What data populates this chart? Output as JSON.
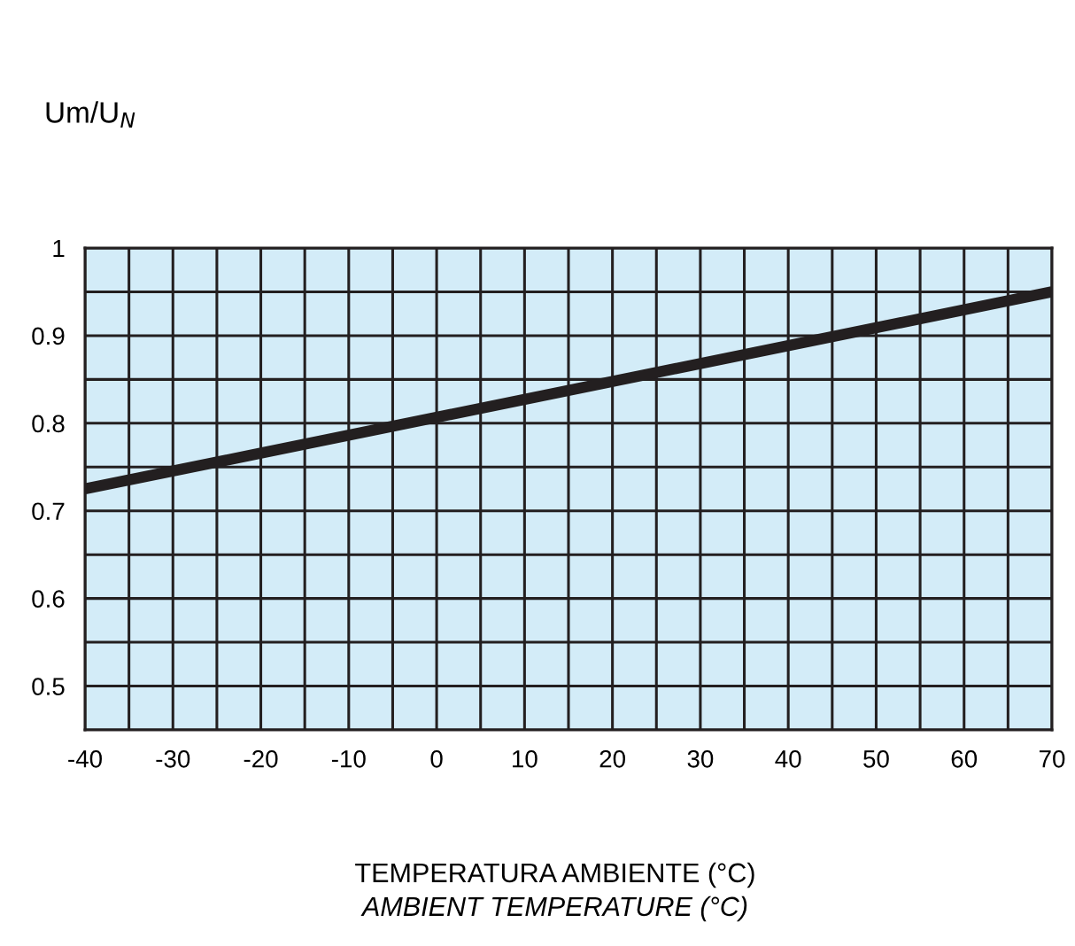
{
  "chart_data": {
    "type": "line",
    "ylabel": "Um/U$_{N}$",
    "xlabel": "TEMPERATURA AMBIENTE (°C)",
    "annotations": [
      "AMBIENT TEMPERATURE (°C)"
    ],
    "x": [
      -40,
      70
    ],
    "series": [
      {
        "color": "#231f20",
        "values": [
          0.725,
          0.95
        ]
      }
    ],
    "xlim": [
      -40,
      70
    ],
    "ylim": [
      0.45,
      1
    ],
    "xticks": [
      -40,
      {
        "value": -35,
        "label": null
      },
      -30,
      {
        "value": -25,
        "label": null
      },
      -20,
      {
        "value": -15,
        "label": null
      },
      -10,
      {
        "value": -5,
        "label": null
      },
      0,
      {
        "value": 5,
        "label": null
      },
      10,
      {
        "value": 15,
        "label": null
      },
      20,
      {
        "value": 25,
        "label": null
      },
      30,
      {
        "value": 35,
        "label": null
      },
      40,
      {
        "value": 45,
        "label": null
      },
      50,
      {
        "value": 55,
        "label": null
      },
      60,
      {
        "value": 65,
        "label": null
      },
      70
    ],
    "yticks": [
      {
        "value": 0.45,
        "label": null
      },
      0.5,
      {
        "value": 0.55,
        "label": null
      },
      0.6,
      {
        "value": 0.65,
        "label": null
      },
      0.7,
      {
        "value": 0.75,
        "label": null
      },
      0.8,
      {
        "value": 0.85,
        "label": null
      },
      0.9,
      {
        "value": 0.95,
        "label": null
      },
      1
    ],
    "grid": true,
    "legend": false,
    "line_style": "solid",
    "marker": "none"
  }
}
